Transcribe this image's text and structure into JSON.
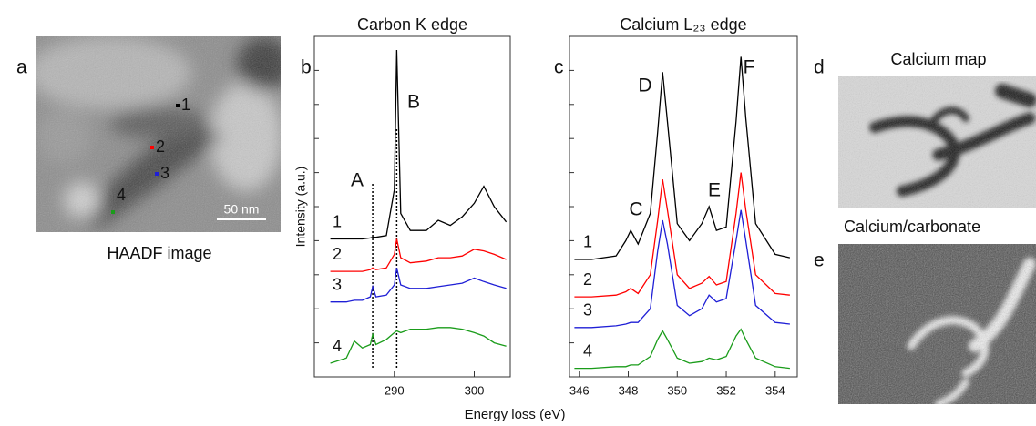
{
  "figure": {
    "panels": [
      "a",
      "b",
      "c",
      "d",
      "e"
    ],
    "x_label": "Energy loss (eV)",
    "haadf": {
      "caption": "HAADF image",
      "scale_bar": "50 nm",
      "points": [
        {
          "label": "1",
          "color": "#000000"
        },
        {
          "label": "2",
          "color": "#ff0000"
        },
        {
          "label": "3",
          "color": "#1f1fd6"
        },
        {
          "label": "4",
          "color": "#1a9c1a"
        }
      ]
    },
    "calcium_map": {
      "title": "Calcium map"
    },
    "ratio_map": {
      "title": "Calcium/carbonate"
    }
  },
  "chart_data": [
    {
      "type": "line",
      "title": "Carbon K edge",
      "y_label": "Intensity (a.u.)",
      "x": [
        282,
        284,
        285,
        286,
        287,
        287.3,
        287.7,
        289,
        290,
        290.3,
        290.8,
        292,
        294,
        295.5,
        297,
        298.5,
        300,
        301.2,
        302.5,
        304
      ],
      "series": [
        {
          "name": "1",
          "color": "#000000",
          "values": [
            4.05,
            4.05,
            4.05,
            4.05,
            4.08,
            4.1,
            4.1,
            4.15,
            5.5,
            9.6,
            4.8,
            4.3,
            4.3,
            4.6,
            4.45,
            4.7,
            5.1,
            5.6,
            5.0,
            4.55
          ]
        },
        {
          "name": "2",
          "color": "#ff0000",
          "values": [
            3.1,
            3.1,
            3.1,
            3.1,
            3.15,
            3.2,
            3.15,
            3.2,
            3.6,
            4.05,
            3.5,
            3.35,
            3.4,
            3.5,
            3.5,
            3.55,
            3.75,
            3.7,
            3.6,
            3.45
          ]
        },
        {
          "name": "3",
          "color": "#1f1fd6",
          "values": [
            2.2,
            2.2,
            2.25,
            2.25,
            2.35,
            2.65,
            2.35,
            2.4,
            2.7,
            3.2,
            2.7,
            2.6,
            2.6,
            2.65,
            2.7,
            2.75,
            2.9,
            2.8,
            2.7,
            2.6
          ]
        },
        {
          "name": "4",
          "color": "#1a9c1a",
          "values": [
            0.4,
            0.55,
            1.05,
            0.85,
            0.95,
            1.25,
            0.95,
            1.1,
            1.3,
            1.35,
            1.3,
            1.4,
            1.4,
            1.45,
            1.45,
            1.4,
            1.3,
            1.2,
            1.0,
            0.9
          ]
        }
      ],
      "reference_lines": [
        287.3,
        290.3
      ],
      "annotations": [
        "A",
        "B"
      ],
      "xlim": [
        280,
        304.5
      ],
      "xticks": [
        290,
        300
      ],
      "ylim": [
        0,
        10
      ],
      "yticks": [
        1,
        2,
        3,
        4,
        5,
        6,
        7,
        8,
        9
      ]
    },
    {
      "type": "line",
      "title": "Calcium L₂₃ edge",
      "x": [
        345.8,
        346.5,
        347.5,
        347.9,
        348.1,
        348.4,
        348.9,
        349.2,
        349.4,
        349.6,
        350.0,
        350.5,
        351.0,
        351.3,
        351.6,
        352.0,
        352.4,
        352.6,
        352.8,
        353.2,
        354.0,
        354.6
      ],
      "series": [
        {
          "name": "1",
          "color": "#000000",
          "values": [
            3.45,
            3.45,
            3.55,
            4.0,
            4.3,
            3.9,
            4.8,
            7.2,
            8.95,
            7.5,
            4.5,
            4.0,
            4.5,
            5.0,
            4.3,
            4.4,
            7.5,
            9.4,
            7.6,
            4.5,
            3.6,
            3.5
          ]
        },
        {
          "name": "2",
          "color": "#ff0000",
          "values": [
            2.35,
            2.35,
            2.4,
            2.5,
            2.6,
            2.45,
            3.0,
            4.6,
            5.8,
            4.9,
            3.0,
            2.6,
            2.75,
            2.95,
            2.7,
            2.8,
            4.8,
            6.0,
            4.9,
            3.0,
            2.45,
            2.4
          ]
        },
        {
          "name": "3",
          "color": "#1f1fd6",
          "values": [
            1.45,
            1.45,
            1.5,
            1.55,
            1.6,
            1.6,
            2.0,
            3.7,
            4.6,
            3.9,
            2.1,
            1.8,
            2.0,
            2.4,
            2.2,
            2.3,
            4.0,
            4.9,
            4.0,
            2.1,
            1.6,
            1.55
          ]
        },
        {
          "name": "4",
          "color": "#1a9c1a",
          "values": [
            0.25,
            0.25,
            0.3,
            0.3,
            0.35,
            0.35,
            0.6,
            1.1,
            1.35,
            1.1,
            0.55,
            0.4,
            0.45,
            0.55,
            0.5,
            0.6,
            1.2,
            1.4,
            1.1,
            0.55,
            0.3,
            0.25
          ]
        }
      ],
      "annotations": [
        "C",
        "D",
        "E",
        "F"
      ],
      "xlim": [
        345.6,
        354.9
      ],
      "xticks": [
        346,
        348,
        350,
        352,
        354
      ],
      "ylim": [
        0,
        10
      ],
      "yticks": [
        1,
        2,
        3,
        4,
        5,
        6,
        7,
        8,
        9
      ]
    }
  ]
}
